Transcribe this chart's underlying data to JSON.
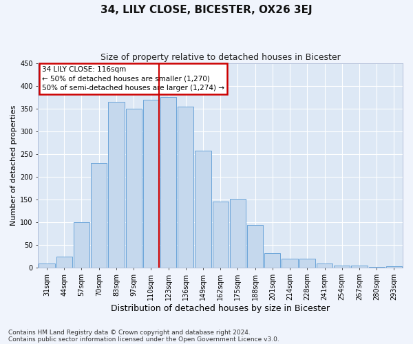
{
  "title": "34, LILY CLOSE, BICESTER, OX26 3EJ",
  "subtitle": "Size of property relative to detached houses in Bicester",
  "xlabel": "Distribution of detached houses by size in Bicester",
  "ylabel": "Number of detached properties",
  "categories": [
    "31sqm",
    "44sqm",
    "57sqm",
    "70sqm",
    "83sqm",
    "97sqm",
    "110sqm",
    "123sqm",
    "136sqm",
    "149sqm",
    "162sqm",
    "175sqm",
    "188sqm",
    "201sqm",
    "214sqm",
    "228sqm",
    "241sqm",
    "254sqm",
    "267sqm",
    "280sqm",
    "293sqm"
  ],
  "values": [
    10,
    25,
    100,
    230,
    365,
    350,
    370,
    375,
    355,
    258,
    145,
    152,
    95,
    33,
    20,
    20,
    10,
    5,
    5,
    2,
    3
  ],
  "bar_color": "#c5d8ed",
  "bar_edge_color": "#5b9bd5",
  "fig_background": "#f0f4fc",
  "ax_background": "#dde8f5",
  "grid_color": "#ffffff",
  "ylim_min": 0,
  "ylim_max": 450,
  "yticks": [
    0,
    50,
    100,
    150,
    200,
    250,
    300,
    350,
    400,
    450
  ],
  "red_line_x": 6.46,
  "annotation_line1": "34 LILY CLOSE: 116sqm",
  "annotation_line2": "← 50% of detached houses are smaller (1,270)",
  "annotation_line3": "50% of semi-detached houses are larger (1,274) →",
  "annotation_box_edgecolor": "#cc0000",
  "footnote1": "Contains HM Land Registry data © Crown copyright and database right 2024.",
  "footnote2": "Contains public sector information licensed under the Open Government Licence v3.0.",
  "title_fontsize": 11,
  "subtitle_fontsize": 9,
  "xlabel_fontsize": 9,
  "ylabel_fontsize": 8,
  "tick_fontsize": 7,
  "annot_fontsize": 7.5,
  "footnote_fontsize": 6.5
}
